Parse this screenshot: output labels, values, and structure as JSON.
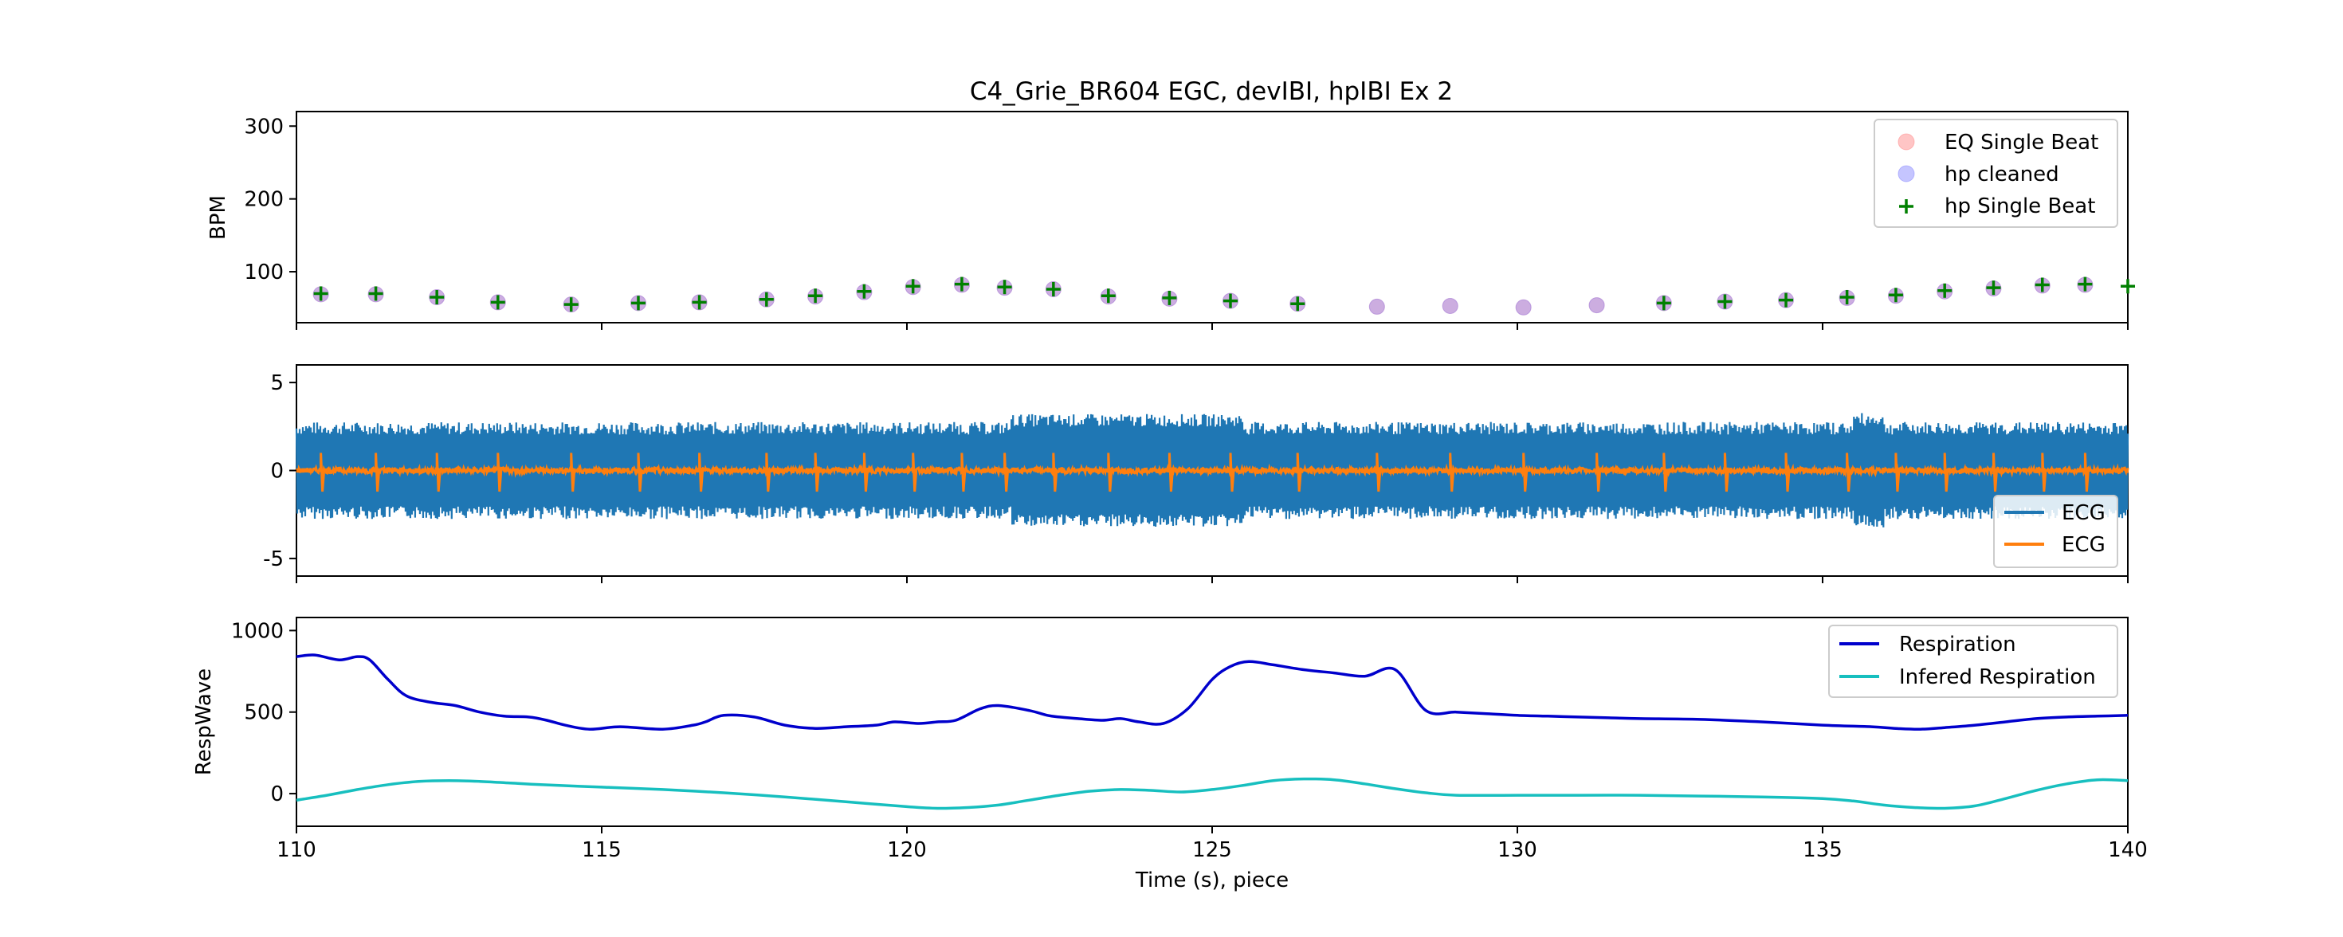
{
  "chart_data": [
    {
      "type": "scatter",
      "title": "C4_Grie_BR604 EGC, devIBI, hpIBI Ex 2",
      "ylabel": "BPM",
      "xlim": [
        110,
        140
      ],
      "ylim": [
        30,
        320
      ],
      "yticks": [
        100,
        200,
        300
      ],
      "legend_position": "top-right",
      "series": [
        {
          "name": "EQ Single Beat",
          "marker": "circle",
          "color": "#ff7f7f",
          "x": [
            110.4,
            111.3,
            112.3,
            113.3,
            114.5,
            115.6,
            116.6,
            117.7,
            118.5,
            119.3,
            120.1,
            120.9,
            121.6,
            122.4,
            123.3,
            124.3,
            125.3,
            126.4,
            127.7,
            128.9,
            130.1,
            131.3,
            132.4,
            133.4,
            134.4,
            135.4,
            136.2,
            137.0,
            137.8,
            138.6,
            139.3
          ],
          "y": [
            69,
            69,
            65,
            58,
            55,
            57,
            58,
            62,
            66,
            72,
            79,
            82,
            78,
            76,
            66,
            63,
            60,
            56,
            52,
            53,
            51,
            54,
            57,
            59,
            61,
            64,
            67,
            73,
            77,
            81,
            82
          ]
        },
        {
          "name": "hp cleaned",
          "marker": "circle",
          "color": "#7f7fff",
          "x": [
            110.4,
            111.3,
            112.3,
            113.3,
            114.5,
            115.6,
            116.6,
            117.7,
            118.5,
            119.3,
            120.1,
            120.9,
            121.6,
            122.4,
            123.3,
            124.3,
            125.3,
            126.4,
            127.7,
            128.9,
            130.1,
            131.3,
            132.4,
            133.4,
            134.4,
            135.4,
            136.2,
            137.0,
            137.8,
            138.6,
            139.3
          ],
          "y": [
            69,
            69,
            65,
            58,
            55,
            57,
            58,
            62,
            66,
            72,
            79,
            82,
            78,
            76,
            66,
            63,
            60,
            56,
            52,
            53,
            51,
            54,
            57,
            59,
            61,
            64,
            67,
            73,
            77,
            81,
            82
          ]
        },
        {
          "name": "hp Single Beat",
          "marker": "plus",
          "color": "#008000",
          "x": [
            110.4,
            111.3,
            112.3,
            113.3,
            114.5,
            115.6,
            116.6,
            117.7,
            118.5,
            119.3,
            120.1,
            120.9,
            121.6,
            122.4,
            123.3,
            124.3,
            125.3,
            126.4,
            132.4,
            133.4,
            134.4,
            135.4,
            136.2,
            137.0,
            137.8,
            138.6,
            139.3,
            140.0
          ],
          "y": [
            70,
            70,
            65,
            58,
            55,
            57,
            58,
            62,
            67,
            73,
            80,
            83,
            79,
            76,
            67,
            64,
            60,
            56,
            57,
            59,
            61,
            65,
            68,
            74,
            78,
            82,
            83,
            80
          ]
        }
      ]
    },
    {
      "type": "line",
      "xlim": [
        110,
        140
      ],
      "ylim": [
        -6,
        6
      ],
      "yticks": [
        -5,
        0,
        5
      ],
      "legend_position": "bottom-right",
      "beats_x": [
        110.4,
        111.3,
        112.3,
        113.3,
        114.5,
        115.6,
        116.6,
        117.7,
        118.5,
        119.3,
        120.1,
        120.9,
        121.6,
        122.4,
        123.3,
        124.3,
        125.3,
        126.4,
        127.7,
        128.9,
        130.1,
        131.3,
        132.4,
        133.4,
        134.4,
        135.4,
        136.2,
        137.0,
        137.8,
        138.6,
        139.3
      ],
      "series": [
        {
          "name": "ECG",
          "color": "#1f77b4",
          "amplitude": 2.4
        },
        {
          "name": "ECG",
          "color": "#ff7f0e",
          "amplitude": 0.15
        }
      ]
    },
    {
      "type": "line",
      "ylabel": "RespWave",
      "xlabel": "Time (s), piece",
      "xlim": [
        110,
        140
      ],
      "ylim": [
        -200,
        1080
      ],
      "yticks": [
        0,
        500,
        1000
      ],
      "xticks": [
        110,
        115,
        120,
        125,
        130,
        135,
        140
      ],
      "legend_position": "top-right",
      "series": [
        {
          "name": "Respiration",
          "color": "#0000cc",
          "x": [
            110,
            110.3,
            110.7,
            111,
            111.2,
            111.5,
            111.8,
            112.2,
            112.6,
            113,
            113.4,
            113.8,
            114.1,
            114.4,
            114.8,
            115.3,
            116,
            116.5,
            116.7,
            117,
            117.5,
            118,
            118.5,
            119,
            119.5,
            119.8,
            120.2,
            120.5,
            120.8,
            121.2,
            121.5,
            122,
            122.3,
            122.5,
            122.8,
            123.2,
            123.5,
            123.8,
            124.2,
            124.6,
            125,
            125.3,
            125.6,
            126,
            126.5,
            127,
            127.5,
            128,
            128.5,
            129,
            129.5,
            130,
            130.5,
            131,
            131.5,
            132,
            133,
            134,
            135,
            135.8,
            136.2,
            136.6,
            137,
            137.5,
            138,
            138.5,
            139,
            139.5,
            140
          ],
          "y": [
            840,
            850,
            820,
            840,
            820,
            700,
            600,
            560,
            540,
            500,
            475,
            470,
            450,
            420,
            395,
            410,
            395,
            420,
            440,
            480,
            470,
            420,
            400,
            410,
            420,
            440,
            430,
            440,
            450,
            520,
            540,
            510,
            480,
            470,
            460,
            450,
            460,
            440,
            430,
            520,
            700,
            780,
            810,
            790,
            760,
            740,
            720,
            760,
            510,
            500,
            490,
            480,
            475,
            470,
            465,
            460,
            455,
            440,
            420,
            410,
            400,
            395,
            405,
            420,
            440,
            460,
            470,
            475,
            480
          ]
        },
        {
          "name": "Infered Respiration",
          "color": "#17bfbf",
          "x": [
            110,
            110.5,
            111,
            111.5,
            112,
            112.5,
            113,
            113.5,
            114,
            115,
            116,
            117,
            118,
            119,
            120,
            120.5,
            121,
            121.5,
            122,
            122.5,
            123,
            123.5,
            124,
            124.5,
            125,
            125.5,
            126,
            126.5,
            127,
            127.5,
            128,
            128.5,
            129,
            130,
            131,
            132,
            133,
            134,
            135,
            135.5,
            136,
            136.5,
            137,
            137.5,
            138,
            138.5,
            139,
            139.5,
            140
          ],
          "y": [
            -40,
            -10,
            25,
            55,
            75,
            80,
            75,
            65,
            55,
            40,
            25,
            5,
            -20,
            -50,
            -80,
            -90,
            -85,
            -70,
            -40,
            -10,
            15,
            25,
            20,
            10,
            25,
            50,
            80,
            90,
            85,
            60,
            30,
            5,
            -10,
            -10,
            -10,
            -10,
            -15,
            -20,
            -30,
            -45,
            -70,
            -85,
            -90,
            -75,
            -30,
            20,
            60,
            85,
            80
          ]
        }
      ]
    }
  ]
}
